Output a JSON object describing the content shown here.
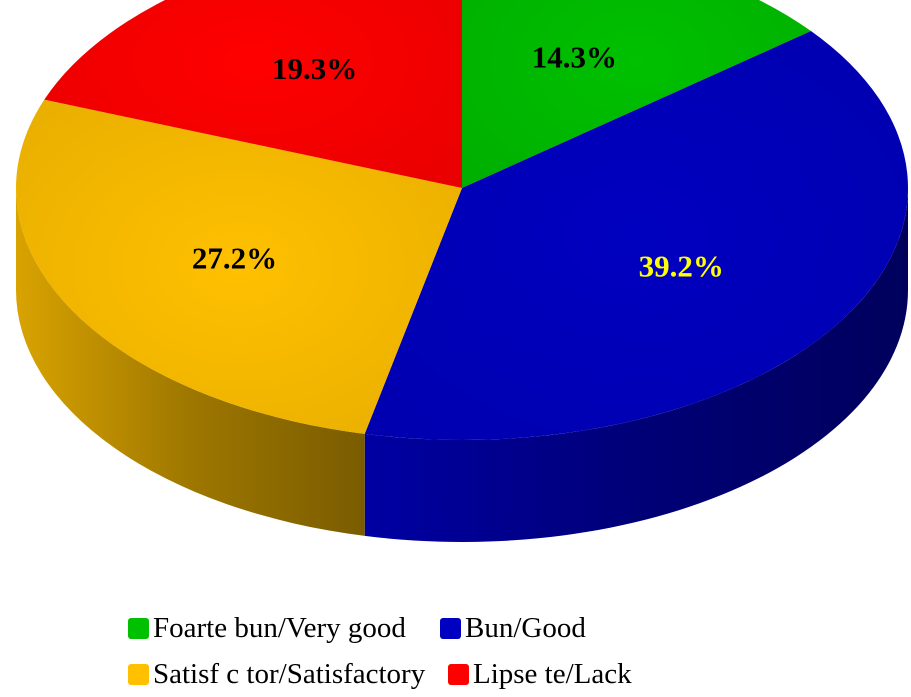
{
  "chart_data": {
    "type": "pie",
    "style": "3d",
    "categories": [
      "Foarte bun/Very good",
      "Bun/Good",
      "Satisf c tor/Satisfactory",
      "Lipse te/Lack"
    ],
    "values": [
      14.3,
      39.2,
      27.2,
      19.3
    ],
    "data_labels": [
      "14.3%",
      "39.2%",
      "27.2%",
      "19.3%"
    ],
    "colors": [
      "#00c000",
      "#0000c0",
      "#ffc000",
      "#ff0000"
    ],
    "label_colors": [
      "#000000",
      "#ffff00",
      "#000000",
      "#000000"
    ],
    "legend_position": "bottom"
  },
  "legend": {
    "rows": [
      [
        {
          "label": "Foarte bun/Very good",
          "color": "#00c000"
        },
        {
          "label": "Bun/Good",
          "color": "#0000c0"
        }
      ],
      [
        {
          "label": "Satisf c tor/Satisfactory",
          "color": "#ffc000"
        },
        {
          "label": "Lipse te/Lack",
          "color": "#ff0000"
        }
      ]
    ]
  }
}
